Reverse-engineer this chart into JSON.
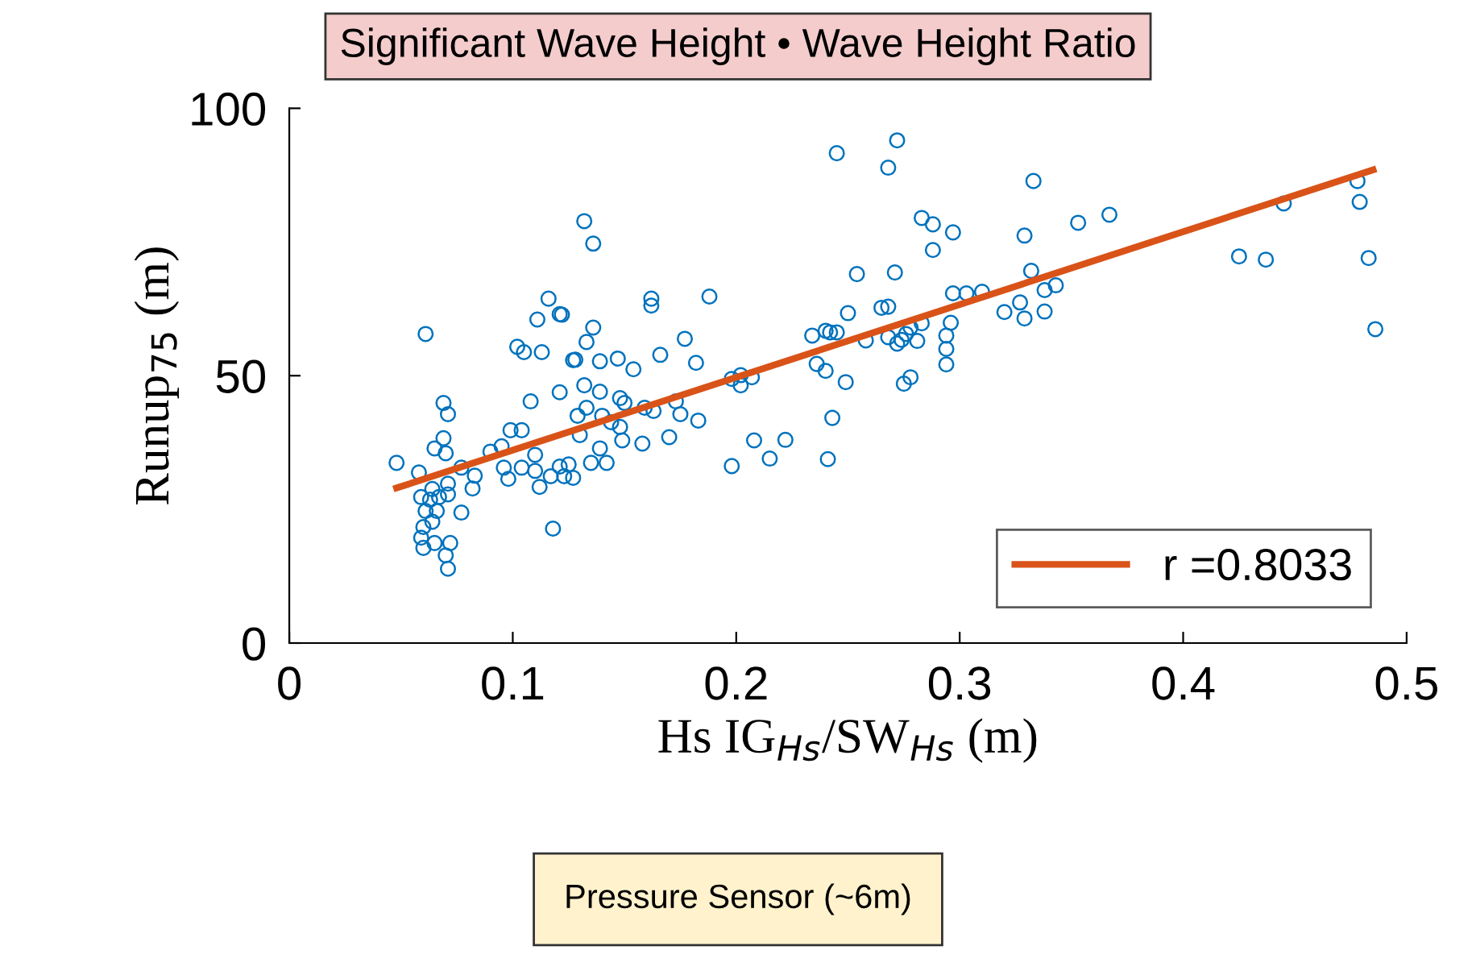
{
  "chart_data": {
    "type": "scatter",
    "title": "Significant Wave Height • Wave Height Ratio",
    "xlabel": "Hs IG$_{Hs}$/SW$_{Hs}$ (m)",
    "ylabel": "Runup$_{75}$ (m)",
    "annotations": [
      "Pressure Sensor (~6m)"
    ],
    "xlim": [
      0,
      0.5
    ],
    "xticks": [
      0,
      0.1,
      0.2,
      0.3,
      0.4,
      0.5
    ],
    "ylim": [
      0,
      100
    ],
    "yticks": [
      0,
      50,
      100
    ],
    "grid": false,
    "legend": "bottom right",
    "series": [
      {
        "marker": "circle",
        "color": "#0072bd",
        "x": [
          0.061,
          0.048,
          0.058,
          0.069,
          0.071,
          0.069,
          0.065,
          0.07,
          0.077,
          0.083,
          0.082,
          0.077,
          0.071,
          0.07,
          0.072,
          0.06,
          0.065,
          0.059,
          0.06,
          0.064,
          0.061,
          0.066,
          0.063,
          0.059,
          0.067,
          0.071,
          0.064,
          0.071,
          0.09,
          0.095,
          0.099,
          0.104,
          0.096,
          0.098,
          0.104,
          0.11,
          0.11,
          0.112,
          0.117,
          0.121,
          0.123,
          0.118,
          0.108,
          0.121,
          0.102,
          0.105,
          0.113,
          0.111,
          0.116,
          0.121,
          0.127,
          0.132,
          0.136,
          0.122,
          0.136,
          0.133,
          0.128,
          0.139,
          0.147,
          0.132,
          0.139,
          0.154,
          0.166,
          0.162,
          0.162,
          0.188,
          0.177,
          0.182,
          0.133,
          0.129,
          0.14,
          0.148,
          0.15,
          0.144,
          0.148,
          0.13,
          0.139,
          0.149,
          0.159,
          0.163,
          0.173,
          0.175,
          0.17,
          0.183,
          0.158,
          0.135,
          0.142,
          0.125,
          0.127,
          0.198,
          0.202,
          0.202,
          0.207,
          0.198,
          0.208,
          0.215,
          0.222,
          0.234,
          0.236,
          0.24,
          0.24,
          0.243,
          0.241,
          0.245,
          0.272,
          0.268,
          0.283,
          0.288,
          0.297,
          0.288,
          0.254,
          0.271,
          0.25,
          0.265,
          0.268,
          0.242,
          0.245,
          0.258,
          0.268,
          0.276,
          0.272,
          0.274,
          0.281,
          0.278,
          0.283,
          0.296,
          0.294,
          0.294,
          0.294,
          0.297,
          0.303,
          0.31,
          0.32,
          0.327,
          0.329,
          0.332,
          0.338,
          0.343,
          0.338,
          0.329,
          0.333,
          0.353,
          0.367,
          0.425,
          0.437,
          0.445,
          0.478,
          0.479,
          0.483,
          0.486,
          0.249,
          0.275,
          0.278
        ],
        "values": [
          57.8,
          33.7,
          31.9,
          44.9,
          42.8,
          38.3,
          36.4,
          35.5,
          32.8,
          31.3,
          28.9,
          24.4,
          13.9,
          16.4,
          18.7,
          17.8,
          18.7,
          19.7,
          21.7,
          22.7,
          24.7,
          24.7,
          26.8,
          27.3,
          27.3,
          27.8,
          28.8,
          29.8,
          35.8,
          36.8,
          39.8,
          39.8,
          32.8,
          30.7,
          32.8,
          35.2,
          32.2,
          29.2,
          31.2,
          33.0,
          31.2,
          21.4,
          45.2,
          46.9,
          55.4,
          54.4,
          54.4,
          60.5,
          64.4,
          61.5,
          52.9,
          78.9,
          74.7,
          61.4,
          59.0,
          56.3,
          53.0,
          52.7,
          53.2,
          48.2,
          47.0,
          51.2,
          53.9,
          64.4,
          63.1,
          64.8,
          56.9,
          52.4,
          44.0,
          42.5,
          42.5,
          45.8,
          44.9,
          41.3,
          40.4,
          38.9,
          36.4,
          37.9,
          44.0,
          43.4,
          45.2,
          42.8,
          38.5,
          41.6,
          37.3,
          33.7,
          33.7,
          33.4,
          30.9,
          49.4,
          50.1,
          48.2,
          49.7,
          33.1,
          37.9,
          34.5,
          38.0,
          57.5,
          52.2,
          50.9,
          58.4,
          42.1,
          34.4,
          91.6,
          94.0,
          88.9,
          79.5,
          78.3,
          76.8,
          73.5,
          69.0,
          69.3,
          61.7,
          62.7,
          62.9,
          58.1,
          58.1,
          56.6,
          57.2,
          57.8,
          56.0,
          56.7,
          56.5,
          59.0,
          59.8,
          59.9,
          57.5,
          55.0,
          52.1,
          65.4,
          65.4,
          65.7,
          61.9,
          63.7,
          60.7,
          69.6,
          66.0,
          66.9,
          62.0,
          76.2,
          86.4,
          78.6,
          80.1,
          72.3,
          71.7,
          82.2,
          86.4,
          82.5,
          72.0,
          58.7,
          48.8,
          48.5,
          49.7
        ]
      },
      {
        "type": "line",
        "name": "r =0.8033",
        "color": "#d95319",
        "x": [
          0.048,
          0.485
        ],
        "values": [
          29,
          88.5
        ]
      }
    ]
  }
}
